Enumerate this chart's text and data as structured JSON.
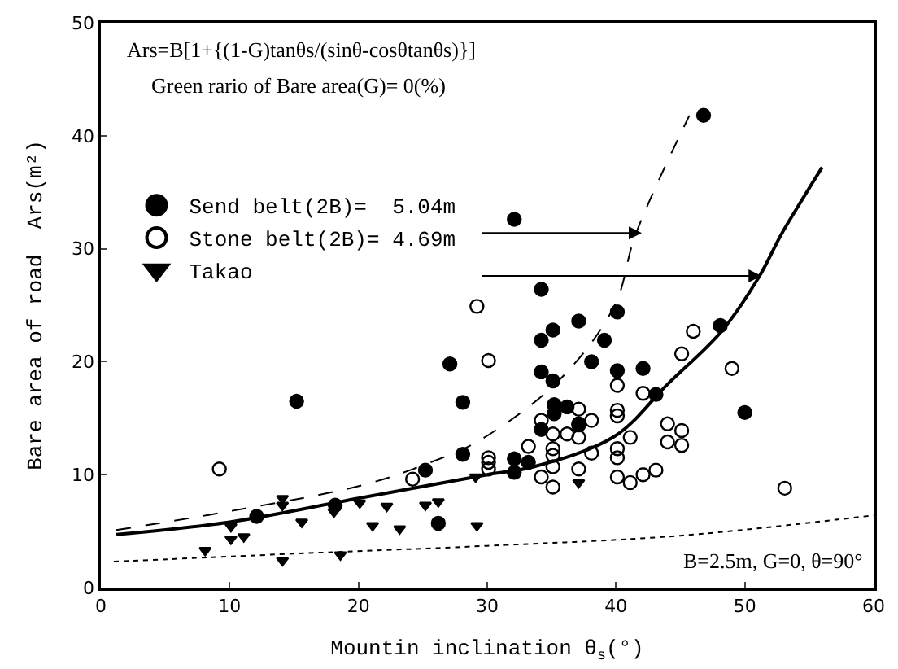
{
  "chart_data": {
    "type": "scatter",
    "xlabel": "Mountin inclination θ$_{s}$(°)",
    "ylabel": "Bare area of road  Ars(m²)",
    "xlim": [
      0,
      60
    ],
    "ylim": [
      0,
      50
    ],
    "xticks": [
      0,
      10,
      20,
      30,
      40,
      50,
      60
    ],
    "yticks": [
      0,
      10,
      20,
      30,
      40,
      50
    ],
    "legend": "left",
    "annotations": [
      "Ars=B[1+{(1-G)tanθs/(sinθ-cosθtanθs)}]",
      "Green rario of Bare area(G)= 0(%)",
      "B=2.5m, G=0, θ=90°"
    ],
    "series": [
      {
        "name": "Send belt(2B)=  5.04m",
        "color": "#000000",
        "marker": "circle",
        "x": [
          15.2,
          27.1,
          28.1,
          28.1,
          25.2,
          18.2,
          26.2,
          12.1,
          46.8,
          32.1,
          34.2,
          37.1,
          40.1,
          34.2,
          35.1,
          39.1,
          48.1,
          34.2,
          35.1,
          38.1,
          40.1,
          42.1,
          43.1,
          50.0,
          35.2,
          35.2,
          36.2,
          34.2,
          37.1,
          32.1,
          32.1,
          33.2
        ],
        "values": [
          16.5,
          19.8,
          16.4,
          11.8,
          10.4,
          7.3,
          5.7,
          6.3,
          41.8,
          32.6,
          26.4,
          23.6,
          24.4,
          21.9,
          22.8,
          21.9,
          23.2,
          19.1,
          18.3,
          20.0,
          19.2,
          19.4,
          17.1,
          15.5,
          16.2,
          15.4,
          16.0,
          14.0,
          14.5,
          11.4,
          10.2,
          11.1
        ]
      },
      {
        "name": "Stone belt(2B)= 4.69m",
        "color": "#000000",
        "marker": "circle-open",
        "x": [
          9.2,
          24.2,
          29.2,
          30.1,
          30.1,
          30.1,
          30.1,
          46.0,
          45.1,
          49.0,
          40.1,
          42.1,
          37.1,
          40.1,
          40.1,
          34.2,
          38.1,
          37.1,
          44.0,
          45.1,
          35.1,
          36.2,
          37.1,
          41.1,
          33.2,
          35.1,
          35.1,
          35.1,
          40.1,
          40.1,
          38.1,
          44.0,
          45.1,
          37.1,
          34.2,
          35.1,
          40.1,
          41.1,
          42.1,
          43.1,
          53.1
        ],
        "values": [
          10.5,
          9.6,
          24.9,
          20.1,
          11.5,
          11.1,
          10.5,
          22.7,
          20.7,
          19.4,
          17.9,
          17.2,
          15.8,
          15.7,
          15.2,
          14.8,
          14.8,
          14.4,
          14.5,
          13.9,
          13.6,
          13.6,
          13.3,
          13.3,
          12.5,
          12.3,
          11.7,
          10.7,
          12.3,
          11.5,
          11.9,
          12.9,
          12.6,
          10.5,
          9.8,
          8.9,
          9.8,
          9.3,
          10.0,
          10.4,
          8.8
        ]
      },
      {
        "name": "Takao",
        "color": "#000000",
        "marker": "triangle-down",
        "x": [
          8.1,
          10.1,
          10.1,
          11.1,
          14.1,
          14.1,
          14.1,
          15.6,
          18.1,
          18.6,
          20.1,
          21.1,
          22.2,
          23.2,
          25.2,
          26.2,
          29.2,
          29.1,
          37.1
        ],
        "values": [
          3.3,
          5.4,
          4.3,
          4.5,
          7.9,
          7.3,
          2.4,
          5.8,
          6.7,
          2.9,
          7.5,
          5.5,
          7.2,
          5.2,
          7.3,
          7.6,
          5.5,
          9.8,
          9.3
        ]
      },
      {
        "type": "line",
        "color": "#000000",
        "line_style": "dashed",
        "x": [
          1.2,
          10.2,
          20.4,
          25.4,
          29.5,
          35.7,
          39.9,
          41.5,
          45.7
        ],
        "values": [
          5.1,
          6.8,
          9.1,
          11.0,
          13.1,
          18.5,
          25.0,
          31.2,
          41.8
        ]
      },
      {
        "type": "line",
        "color": "#000000",
        "line_style": "solid",
        "x": [
          1.2,
          10,
          20,
          30,
          33.6,
          39.9,
          44,
          48.2,
          51.1,
          52.8,
          54,
          56
        ],
        "values": [
          4.7,
          5.8,
          7.9,
          10.0,
          10.7,
          13.4,
          18.0,
          22.7,
          27.5,
          31.2,
          33.5,
          37.2
        ]
      },
      {
        "type": "line",
        "color": "#000000",
        "line_style": "dotted",
        "x": [
          1,
          15,
          30,
          45,
          60
        ],
        "values": [
          2.3,
          3.0,
          3.7,
          4.6,
          6.4
        ]
      }
    ]
  }
}
